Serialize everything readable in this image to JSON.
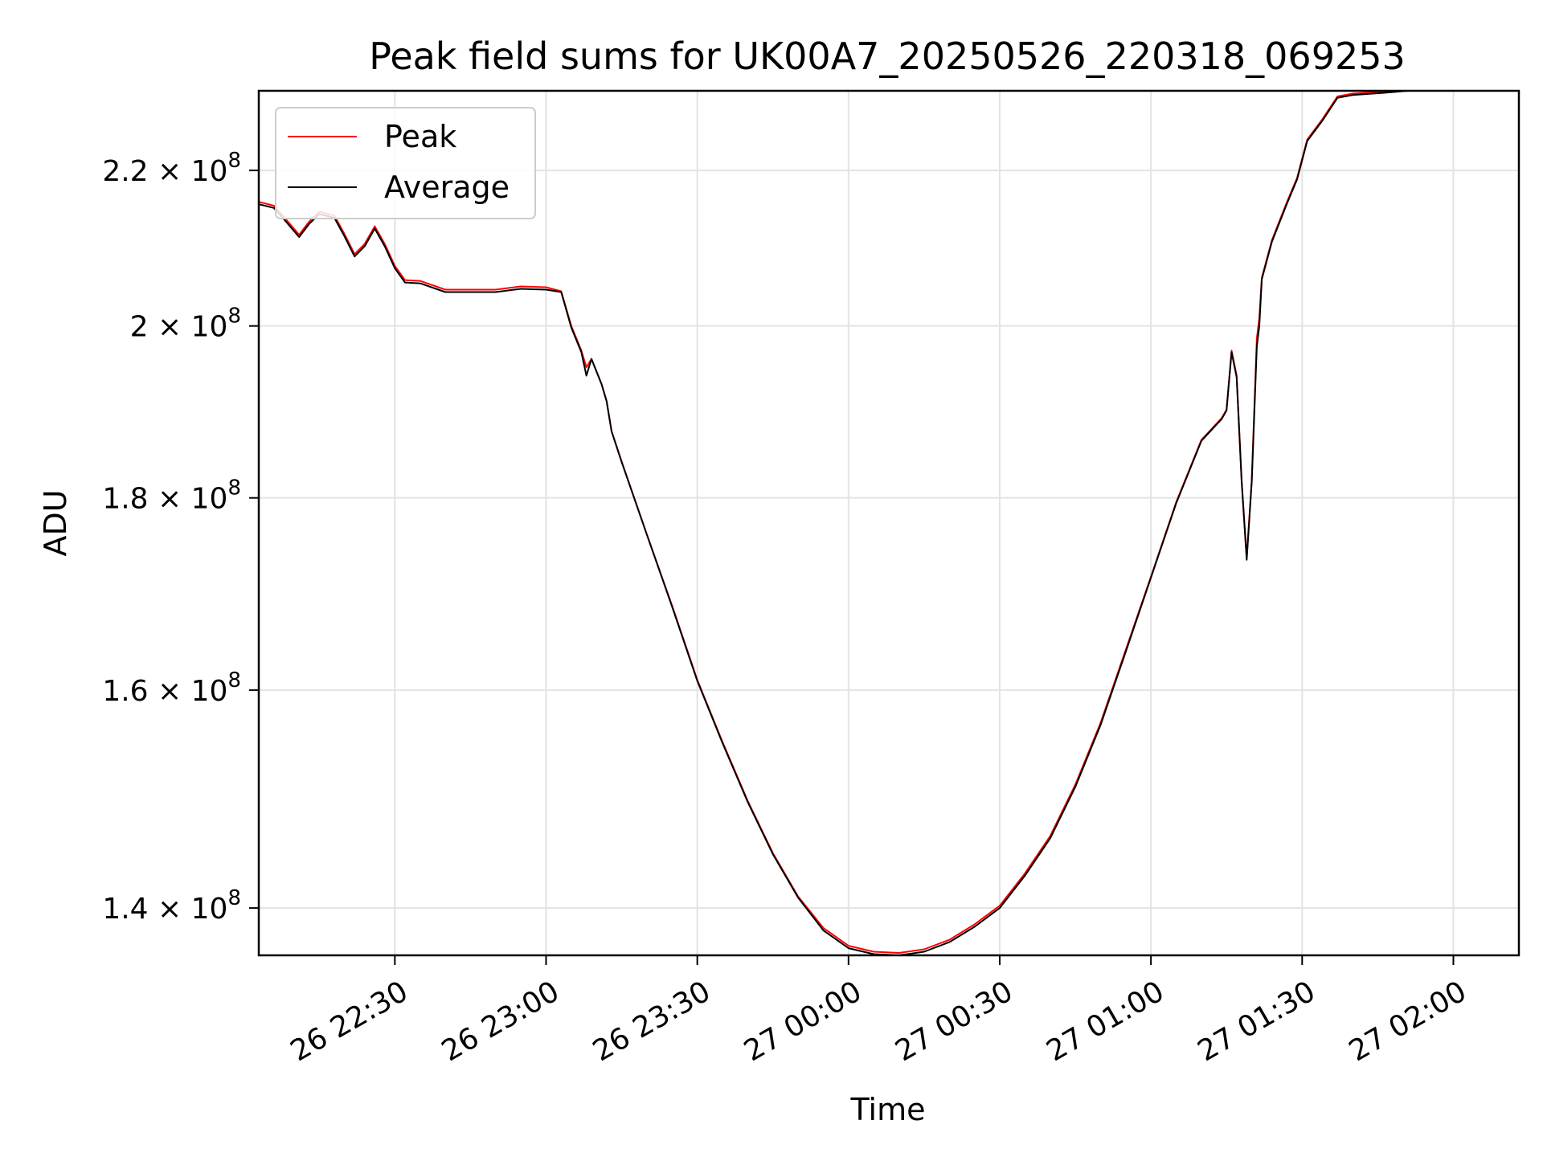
{
  "chart_data": {
    "type": "line",
    "title": "Peak field sums for UK00A7_20250526_220318_069253",
    "xlabel": "Time",
    "ylabel": "ADU",
    "y_scale": "log",
    "xlim": [
      "26 22:03",
      "27 02:13"
    ],
    "ylim": [
      136000000,
      231000000
    ],
    "x_ticks": [
      "26 22:30",
      "26 23:00",
      "26 23:30",
      "27 00:00",
      "27 00:30",
      "27 01:00",
      "27 01:30",
      "27 02:00"
    ],
    "y_ticks": [
      {
        "value": 140000000,
        "mantissa": "1.4",
        "base": "10",
        "exp": "8"
      },
      {
        "value": 160000000,
        "mantissa": "1.6",
        "base": "10",
        "exp": "8"
      },
      {
        "value": 180000000,
        "mantissa": "1.8",
        "base": "10",
        "exp": "8"
      },
      {
        "value": 200000000,
        "mantissa": "2",
        "base": "10",
        "exp": "8"
      },
      {
        "value": 220000000,
        "mantissa": "2.2",
        "base": "10",
        "exp": "8"
      }
    ],
    "grid": true,
    "legend_position": "top-left",
    "series": [
      {
        "name": "Peak",
        "color": "#ff0000",
        "points": [
          [
            "26 22:03",
            215800000
          ],
          [
            "26 22:06",
            215300000
          ],
          [
            "26 22:08",
            213800000
          ],
          [
            "26 22:11",
            211500000
          ],
          [
            "26 22:13",
            213200000
          ],
          [
            "26 22:15",
            214500000
          ],
          [
            "26 22:18",
            214000000
          ],
          [
            "26 22:20",
            211600000
          ],
          [
            "26 22:22",
            209000000
          ],
          [
            "26 22:24",
            210300000
          ],
          [
            "26 22:26",
            212600000
          ],
          [
            "26 22:28",
            210300000
          ],
          [
            "26 22:30",
            207500000
          ],
          [
            "26 22:32",
            205700000
          ],
          [
            "26 22:35",
            205600000
          ],
          [
            "26 22:40",
            204500000
          ],
          [
            "26 22:45",
            204500000
          ],
          [
            "26 22:50",
            204500000
          ],
          [
            "26 22:55",
            204900000
          ],
          [
            "26 23:00",
            204800000
          ],
          [
            "26 23:03",
            204300000
          ],
          [
            "26 23:05",
            200000000
          ],
          [
            "26 23:07",
            197000000
          ],
          [
            "26 23:08",
            195000000
          ],
          [
            "26 23:09",
            196000000
          ],
          [
            "26 23:11",
            193000000
          ],
          [
            "26 23:12",
            191000000
          ],
          [
            "26 23:13",
            187500000
          ],
          [
            "26 23:15",
            184000000
          ],
          [
            "26 23:20",
            176000000
          ],
          [
            "26 23:25",
            168500000
          ],
          [
            "26 23:30",
            161000000
          ],
          [
            "26 23:35",
            155000000
          ],
          [
            "26 23:40",
            149500000
          ],
          [
            "26 23:45",
            144800000
          ],
          [
            "26 23:50",
            141000000
          ],
          [
            "26 23:55",
            138300000
          ],
          [
            "27 00:00",
            136800000
          ],
          [
            "27 00:05",
            136300000
          ],
          [
            "27 00:10",
            136200000
          ],
          [
            "27 00:15",
            136500000
          ],
          [
            "27 00:20",
            137300000
          ],
          [
            "27 00:25",
            138600000
          ],
          [
            "27 00:30",
            140200000
          ],
          [
            "27 00:35",
            143000000
          ],
          [
            "27 00:40",
            146300000
          ],
          [
            "27 00:45",
            151000000
          ],
          [
            "27 00:50",
            156800000
          ],
          [
            "27 00:55",
            164000000
          ],
          [
            "27 01:00",
            171500000
          ],
          [
            "27 01:05",
            179500000
          ],
          [
            "27 01:10",
            186500000
          ],
          [
            "27 01:14",
            189000000
          ],
          [
            "27 01:15",
            190000000
          ],
          [
            "27 01:16",
            197000000
          ],
          [
            "27 01:17",
            194000000
          ],
          [
            "27 01:18",
            182000000
          ],
          [
            "27 01:19",
            173500000
          ],
          [
            "27 01:20",
            182000000
          ],
          [
            "27 01:21",
            198500000
          ],
          [
            "27 01:21:30",
            201000000
          ],
          [
            "27 01:22",
            206000000
          ],
          [
            "27 01:24",
            210800000
          ],
          [
            "27 01:27",
            215800000
          ],
          [
            "27 01:29",
            219000000
          ],
          [
            "27 01:31",
            224200000
          ],
          [
            "27 01:34",
            227000000
          ],
          [
            "27 01:37",
            230200000
          ],
          [
            "27 01:40",
            230600000
          ],
          [
            "27 01:46",
            230900000
          ],
          [
            "27 01:51",
            231000000
          ]
        ]
      },
      {
        "name": "Average",
        "color": "#000000",
        "points": [
          [
            "26 22:03",
            215500000
          ],
          [
            "26 22:06",
            215000000
          ],
          [
            "26 22:08",
            213500000
          ],
          [
            "26 22:11",
            211200000
          ],
          [
            "26 22:13",
            212900000
          ],
          [
            "26 22:15",
            214200000
          ],
          [
            "26 22:18",
            213700000
          ],
          [
            "26 22:20",
            211300000
          ],
          [
            "26 22:22",
            208700000
          ],
          [
            "26 22:24",
            210000000
          ],
          [
            "26 22:26",
            212300000
          ],
          [
            "26 22:28",
            210000000
          ],
          [
            "26 22:30",
            207200000
          ],
          [
            "26 22:32",
            205400000
          ],
          [
            "26 22:35",
            205300000
          ],
          [
            "26 22:40",
            204200000
          ],
          [
            "26 22:45",
            204200000
          ],
          [
            "26 22:50",
            204200000
          ],
          [
            "26 22:55",
            204600000
          ],
          [
            "26 23:00",
            204500000
          ],
          [
            "26 23:03",
            204200000
          ],
          [
            "26 23:05",
            199800000
          ],
          [
            "26 23:07",
            196800000
          ],
          [
            "26 23:08",
            194000000
          ],
          [
            "26 23:09",
            196000000
          ],
          [
            "26 23:11",
            193000000
          ],
          [
            "26 23:12",
            191000000
          ],
          [
            "26 23:13",
            187500000
          ],
          [
            "26 23:15",
            184000000
          ],
          [
            "26 23:20",
            176000000
          ],
          [
            "26 23:25",
            168400000
          ],
          [
            "26 23:30",
            160900000
          ],
          [
            "26 23:35",
            154900000
          ],
          [
            "26 23:40",
            149400000
          ],
          [
            "26 23:45",
            144700000
          ],
          [
            "26 23:50",
            140900000
          ],
          [
            "26 23:55",
            138100000
          ],
          [
            "27 00:00",
            136600000
          ],
          [
            "27 00:05",
            136100000
          ],
          [
            "27 00:10",
            136000000
          ],
          [
            "27 00:15",
            136300000
          ],
          [
            "27 00:20",
            137100000
          ],
          [
            "27 00:25",
            138400000
          ],
          [
            "27 00:30",
            140000000
          ],
          [
            "27 00:35",
            142800000
          ],
          [
            "27 00:40",
            146100000
          ],
          [
            "27 00:45",
            150800000
          ],
          [
            "27 00:50",
            156600000
          ],
          [
            "27 00:55",
            163800000
          ],
          [
            "27 01:00",
            171400000
          ],
          [
            "27 01:05",
            179400000
          ],
          [
            "27 01:10",
            186400000
          ],
          [
            "27 01:14",
            188900000
          ],
          [
            "27 01:15",
            189900000
          ],
          [
            "27 01:16",
            196800000
          ],
          [
            "27 01:17",
            193800000
          ],
          [
            "27 01:18",
            181800000
          ],
          [
            "27 01:19",
            173300000
          ],
          [
            "27 01:20",
            181800000
          ],
          [
            "27 01:21",
            197500000
          ],
          [
            "27 01:21:30",
            200000000
          ],
          [
            "27 01:22",
            205800000
          ],
          [
            "27 01:24",
            210600000
          ],
          [
            "27 01:27",
            215600000
          ],
          [
            "27 01:29",
            218800000
          ],
          [
            "27 01:31",
            224000000
          ],
          [
            "27 01:34",
            226800000
          ],
          [
            "27 01:37",
            230000000
          ],
          [
            "27 01:40",
            230400000
          ],
          [
            "27 01:46",
            230700000
          ],
          [
            "27 01:51",
            231000000
          ]
        ]
      }
    ]
  }
}
